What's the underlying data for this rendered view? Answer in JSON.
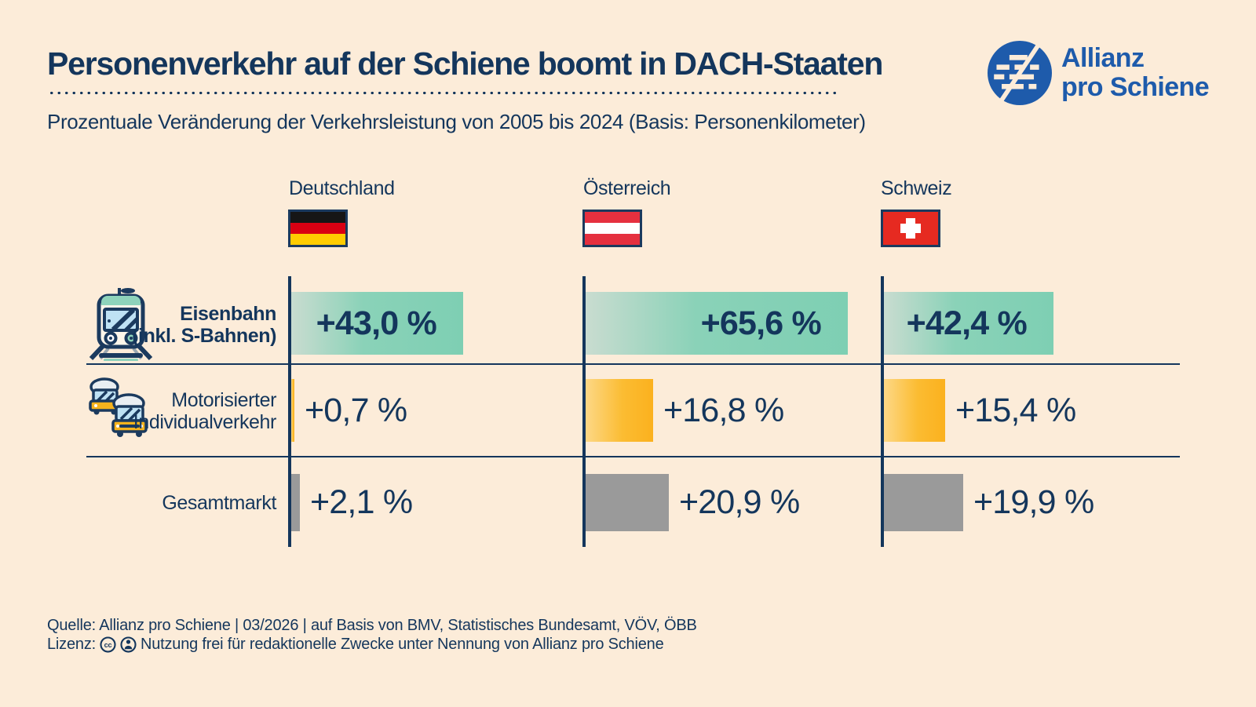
{
  "header": {
    "title": "Personenverkehr auf der Schiene boomt in DACH-Staaten",
    "subtitle": "Prozentuale Veränderung der Verkehrsleistung von 2005 bis 2024 (Basis: Personenkilometer)"
  },
  "logo": {
    "line1": "Allianz",
    "line2": "pro Schiene"
  },
  "columns": [
    {
      "label": "Deutschland",
      "flag": "germany-flag"
    },
    {
      "label": "Österreich",
      "flag": "austria-flag"
    },
    {
      "label": "Schweiz",
      "flag": "switzerland-flag"
    }
  ],
  "rows": [
    {
      "label_line1": "Eisenbahn",
      "label_line2": "(inkl. S-Bahnen)",
      "icon": "train-icon"
    },
    {
      "label_line1": "Motorisierter",
      "label_line2": "Individualverkehr",
      "icon": "cars-icon"
    },
    {
      "label_line1": "Gesamtmarkt",
      "label_line2": "",
      "icon": ""
    }
  ],
  "chart_data": {
    "type": "bar",
    "orientation": "horizontal",
    "title": "Personenverkehr auf der Schiene boomt in DACH-Staaten",
    "subtitle": "Prozentuale Veränderung der Verkehrsleistung von 2005 bis 2024 (Basis: Personenkilometer)",
    "unit": "%",
    "categories": [
      "Deutschland",
      "Österreich",
      "Schweiz"
    ],
    "series": [
      {
        "name": "Eisenbahn (inkl. S-Bahnen)",
        "values": [
          43.0,
          65.6,
          42.4
        ],
        "display": [
          "+43,0 %",
          "+65,6 %",
          "+42,4 %"
        ],
        "color_style": "teal-gradient"
      },
      {
        "name": "Motorisierter Individualverkehr",
        "values": [
          0.7,
          16.8,
          15.4
        ],
        "display": [
          "+0,7 %",
          "+16,8 %",
          "+15,4 %"
        ],
        "color_style": "yellow-gradient"
      },
      {
        "name": "Gesamtmarkt",
        "values": [
          2.1,
          20.9,
          19.9
        ],
        "display": [
          "+2,1 %",
          "+20,9 %",
          "+19,9 %"
        ],
        "color_style": "gray"
      }
    ],
    "value_axis": {
      "min": 0,
      "max": 70,
      "visible": false
    },
    "grid": "none",
    "legend": "none"
  },
  "footer": {
    "source": "Quelle: Allianz pro Schiene | 03/2026 | auf Basis von BMV, Statistisches Bundesamt, VÖV, ÖBB",
    "license_prefix": "Lizenz:",
    "license_icons": [
      "cc-icon",
      "by-attribution-icon"
    ],
    "license_text": "Nutzung frei für redaktionelle Zwecke unter Nennung von Allianz pro Schiene"
  },
  "colors": {
    "background": "#fcecd9",
    "navy_text": "#14365c",
    "logo_blue": "#1e5bab",
    "rail_bar_start": "#c9dcd0",
    "rail_bar_end": "#7ecfb3",
    "car_bar_start": "#fdd886",
    "car_bar_end": "#fbb11e",
    "market_bar": "#9a9a9a",
    "flag_de": [
      "#161616",
      "#d90012",
      "#ffcc00"
    ],
    "flag_at_red": "#e5303f",
    "flag_ch_red": "#e62a21"
  }
}
